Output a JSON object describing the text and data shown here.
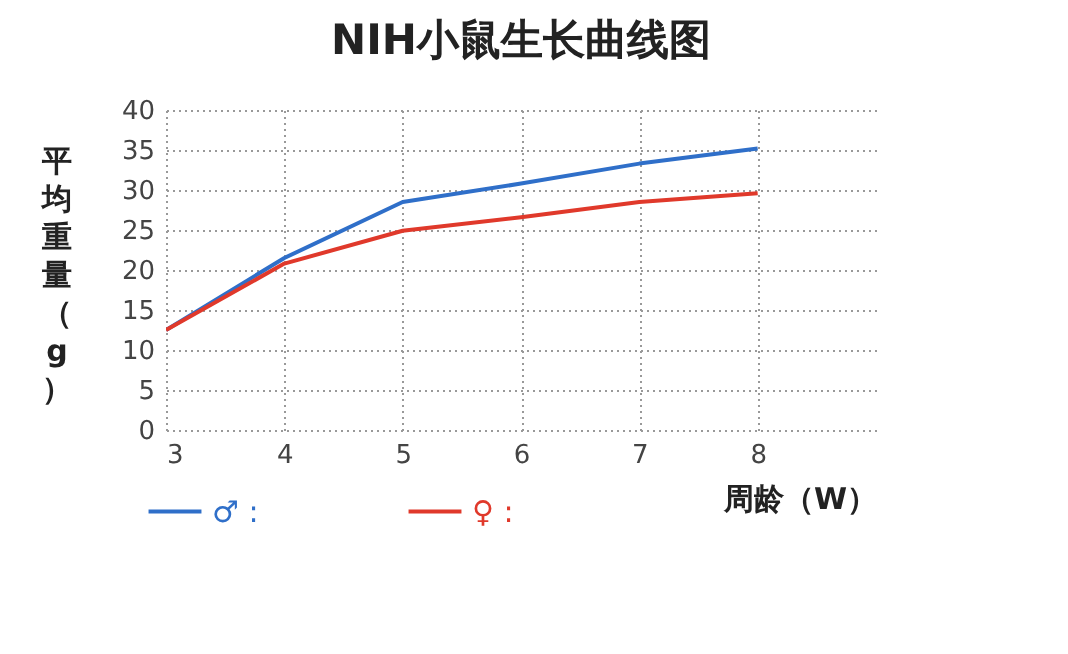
{
  "chart_data": {
    "type": "line",
    "title": "NIH小鼠生长曲线图",
    "xlabel": "周龄（W）",
    "ylabel": "平均重量（g）",
    "x": [
      3,
      4,
      5,
      6,
      7,
      8
    ],
    "series": [
      {
        "name": "♂ :",
        "color": "#2f6fc9",
        "values": [
          12.5,
          21.5,
          28.5,
          30.8,
          33.3,
          35.2
        ]
      },
      {
        "name": "♀ :",
        "color": "#e0392b",
        "values": [
          12.5,
          20.8,
          24.9,
          26.6,
          28.5,
          29.6
        ]
      }
    ],
    "xlim": [
      3,
      9
    ],
    "xticks": [
      3,
      4,
      5,
      6,
      7,
      8
    ],
    "ylim": [
      0,
      40
    ],
    "yticks": [
      0,
      5,
      10,
      15,
      20,
      25,
      30,
      35,
      40
    ],
    "grid": true,
    "legend": "bottom",
    "marker": "none",
    "line_style": "solid"
  }
}
